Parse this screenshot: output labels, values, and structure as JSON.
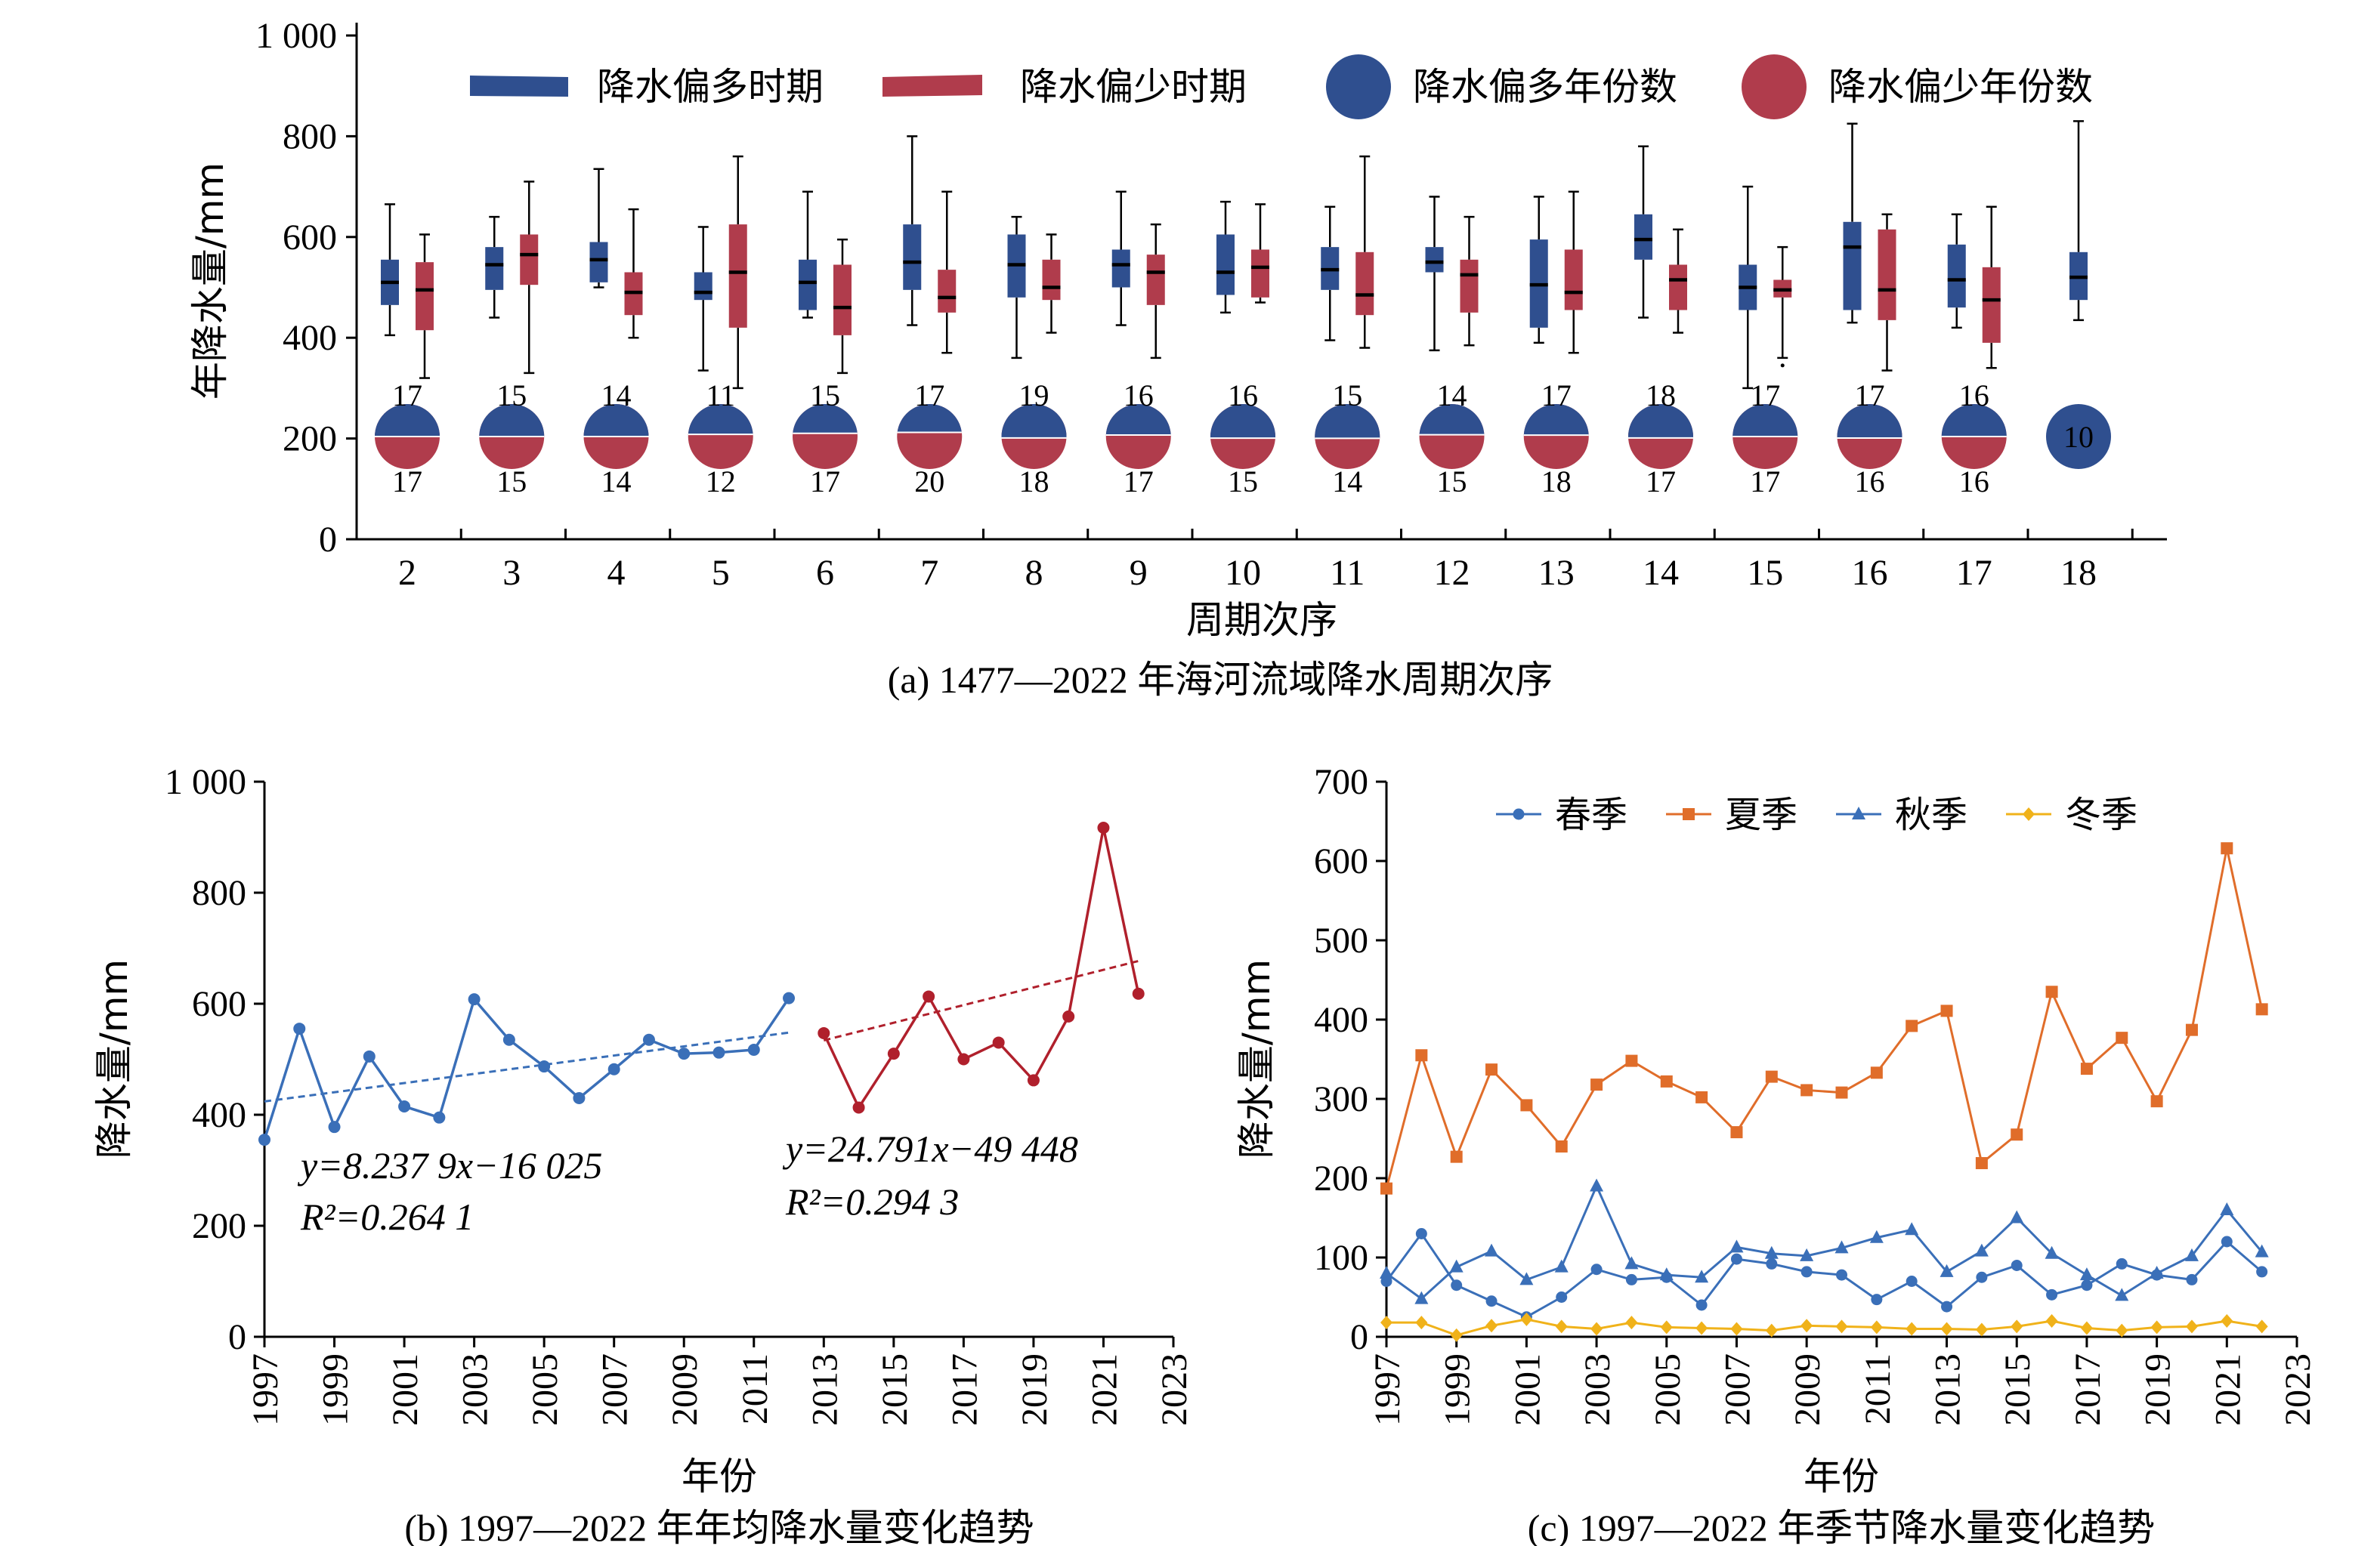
{
  "colors": {
    "wet": "#2f4f8f",
    "dry": "#b03c4c",
    "spring": "#3a6fb8",
    "summer": "#e06d2a",
    "autumn": "#3a6fb8",
    "winter": "#f0b21a",
    "line_b1": "#3a6fb8",
    "line_b2": "#b0202c"
  },
  "chart_data": [
    {
      "id": "a",
      "type": "box",
      "caption": "(a) 1477—2022 年海河流域降水周期次序",
      "xlabel": "周期次序",
      "ylabel": "年降水量/mm",
      "ylim": [
        0,
        1000
      ],
      "ytick_labels": [
        "0",
        "200",
        "400",
        "600",
        "800",
        "1 000"
      ],
      "ytick_values": [
        0,
        200,
        400,
        600,
        800,
        1000
      ],
      "legend": [
        "降水偏多时期",
        "降水偏少时期",
        "降水偏多年份数",
        "降水偏少年份数"
      ],
      "categories": [
        "2",
        "3",
        "4",
        "5",
        "6",
        "7",
        "8",
        "9",
        "10",
        "11",
        "12",
        "13",
        "14",
        "15",
        "16",
        "17",
        "18"
      ],
      "wet_boxes": [
        [
          405,
          465,
          510,
          555,
          665
        ],
        [
          440,
          495,
          545,
          580,
          640
        ],
        [
          500,
          510,
          555,
          590,
          735
        ],
        [
          335,
          475,
          490,
          530,
          620
        ],
        [
          440,
          455,
          510,
          555,
          690
        ],
        [
          425,
          495,
          550,
          625,
          800
        ],
        [
          360,
          480,
          545,
          605,
          640
        ],
        [
          425,
          500,
          545,
          575,
          690
        ],
        [
          450,
          485,
          530,
          605,
          670
        ],
        [
          395,
          495,
          535,
          580,
          660
        ],
        [
          375,
          530,
          550,
          580,
          680
        ],
        [
          390,
          420,
          505,
          595,
          680
        ],
        [
          440,
          555,
          595,
          645,
          780
        ],
        [
          300,
          455,
          500,
          545,
          700
        ],
        [
          430,
          455,
          580,
          630,
          825
        ],
        [
          420,
          460,
          515,
          585,
          645
        ],
        [
          435,
          475,
          520,
          570,
          830
        ]
      ],
      "dry_boxes": [
        [
          320,
          415,
          495,
          550,
          605
        ],
        [
          330,
          505,
          565,
          605,
          710
        ],
        [
          400,
          445,
          490,
          530,
          655
        ],
        [
          300,
          420,
          530,
          625,
          760
        ],
        [
          330,
          405,
          460,
          545,
          595
        ],
        [
          370,
          450,
          480,
          535,
          690
        ],
        [
          410,
          475,
          500,
          555,
          605
        ],
        [
          360,
          465,
          530,
          565,
          625
        ],
        [
          470,
          480,
          540,
          575,
          665
        ],
        [
          380,
          445,
          485,
          570,
          760
        ],
        [
          385,
          450,
          525,
          555,
          640
        ],
        [
          370,
          455,
          490,
          575,
          690
        ],
        [
          410,
          455,
          515,
          545,
          615
        ],
        [
          360,
          480,
          495,
          515,
          580
        ],
        [
          335,
          435,
          495,
          615,
          645
        ],
        [
          340,
          390,
          475,
          540,
          660
        ],
        null
      ],
      "dry_outliers": [
        null,
        null,
        null,
        null,
        null,
        null,
        null,
        null,
        null,
        null,
        null,
        null,
        null,
        345,
        null,
        null,
        null
      ],
      "wet_counts": [
        "17",
        "15",
        "14",
        "11",
        "15",
        "17",
        "19",
        "16",
        "16",
        "15",
        "14",
        "17",
        "18",
        "17",
        "17",
        "16",
        "10"
      ],
      "dry_counts": [
        "17",
        "15",
        "14",
        "12",
        "17",
        "20",
        "18",
        "17",
        "15",
        "14",
        "15",
        "18",
        "17",
        "17",
        "16",
        "16",
        ""
      ]
    },
    {
      "id": "b",
      "type": "line",
      "caption": "(b) 1997—2022 年年均降水量变化趋势",
      "xlabel": "年份",
      "ylabel": "降水量/mm",
      "xlim": [
        1997,
        2023
      ],
      "ylim": [
        0,
        1000
      ],
      "xtick_labels": [
        "1997",
        "1999",
        "2001",
        "2003",
        "2005",
        "2007",
        "2009",
        "2011",
        "2013",
        "2015",
        "2017",
        "2019",
        "2021",
        "2023"
      ],
      "ytick_labels": [
        "0",
        "200",
        "400",
        "600",
        "800",
        "1 000"
      ],
      "ytick_values": [
        0,
        200,
        400,
        600,
        800,
        1000
      ],
      "series": [
        {
          "x": [
            1997,
            1998,
            1999,
            2000,
            2001,
            2002,
            2003,
            2004,
            2005,
            2006,
            2007,
            2008,
            2009,
            2010,
            2011,
            2012
          ],
          "y": [
            355,
            555,
            378,
            505,
            415,
            395,
            608,
            535,
            487,
            430,
            482,
            535,
            510,
            512,
            517,
            610
          ]
        },
        {
          "x": [
            2013,
            2014,
            2015,
            2016,
            2017,
            2018,
            2019,
            2020,
            2021,
            2022
          ],
          "y": [
            547,
            413,
            510,
            613,
            500,
            530,
            462,
            577,
            917,
            618
          ]
        }
      ],
      "trendlines": [
        {
          "x": [
            1997,
            2012
          ],
          "y": [
            424,
            548
          ]
        },
        {
          "x": [
            2013,
            2022
          ],
          "y": [
            534,
            677
          ]
        }
      ],
      "equations": [
        {
          "line1": "y=8.237 9x−16 025",
          "line2": "R²=0.264 1"
        },
        {
          "line1": "y=24.791x−49 448",
          "line2": "R²=0.294 3"
        }
      ]
    },
    {
      "id": "c",
      "type": "line",
      "caption": "(c) 1997—2022 年季节降水量变化趋势",
      "xlabel": "年份",
      "ylabel": "降水量/mm",
      "xlim": [
        1997,
        2023
      ],
      "ylim": [
        0,
        700
      ],
      "xtick_labels": [
        "1997",
        "1999",
        "2001",
        "2003",
        "2005",
        "2007",
        "2009",
        "2011",
        "2013",
        "2015",
        "2017",
        "2019",
        "2021",
        "2023"
      ],
      "ytick_labels": [
        "0",
        "100",
        "200",
        "300",
        "400",
        "500",
        "600",
        "700"
      ],
      "ytick_values": [
        0,
        100,
        200,
        300,
        400,
        500,
        600,
        700
      ],
      "x": [
        1997,
        1998,
        1999,
        2000,
        2001,
        2002,
        2003,
        2004,
        2005,
        2006,
        2007,
        2008,
        2009,
        2010,
        2011,
        2012,
        2013,
        2014,
        2015,
        2016,
        2017,
        2018,
        2019,
        2020,
        2021,
        2022
      ],
      "series": [
        {
          "name": "春季",
          "marker": "circle",
          "values": [
            70,
            130,
            65,
            45,
            25,
            50,
            85,
            72,
            75,
            40,
            98,
            92,
            82,
            78,
            47,
            70,
            38,
            75,
            90,
            53,
            65,
            92,
            78,
            72,
            120,
            82
          ]
        },
        {
          "name": "夏季",
          "marker": "square",
          "values": [
            187,
            355,
            227,
            337,
            292,
            240,
            318,
            348,
            322,
            302,
            258,
            328,
            311,
            308,
            333,
            392,
            411,
            219,
            255,
            435,
            338,
            377,
            297,
            387,
            616,
            413
          ]
        },
        {
          "name": "秋季",
          "marker": "triangle",
          "values": [
            80,
            48,
            88,
            108,
            72,
            88,
            190,
            92,
            78,
            75,
            113,
            105,
            102,
            112,
            125,
            135,
            82,
            108,
            150,
            105,
            78,
            52,
            80,
            102,
            160,
            107
          ]
        },
        {
          "name": "冬季",
          "marker": "diamond",
          "values": [
            18,
            18,
            2,
            14,
            22,
            13,
            10,
            18,
            12,
            11,
            10,
            8,
            14,
            13,
            12,
            10,
            10,
            9,
            13,
            20,
            11,
            8,
            12,
            13,
            20,
            13
          ]
        }
      ]
    }
  ]
}
